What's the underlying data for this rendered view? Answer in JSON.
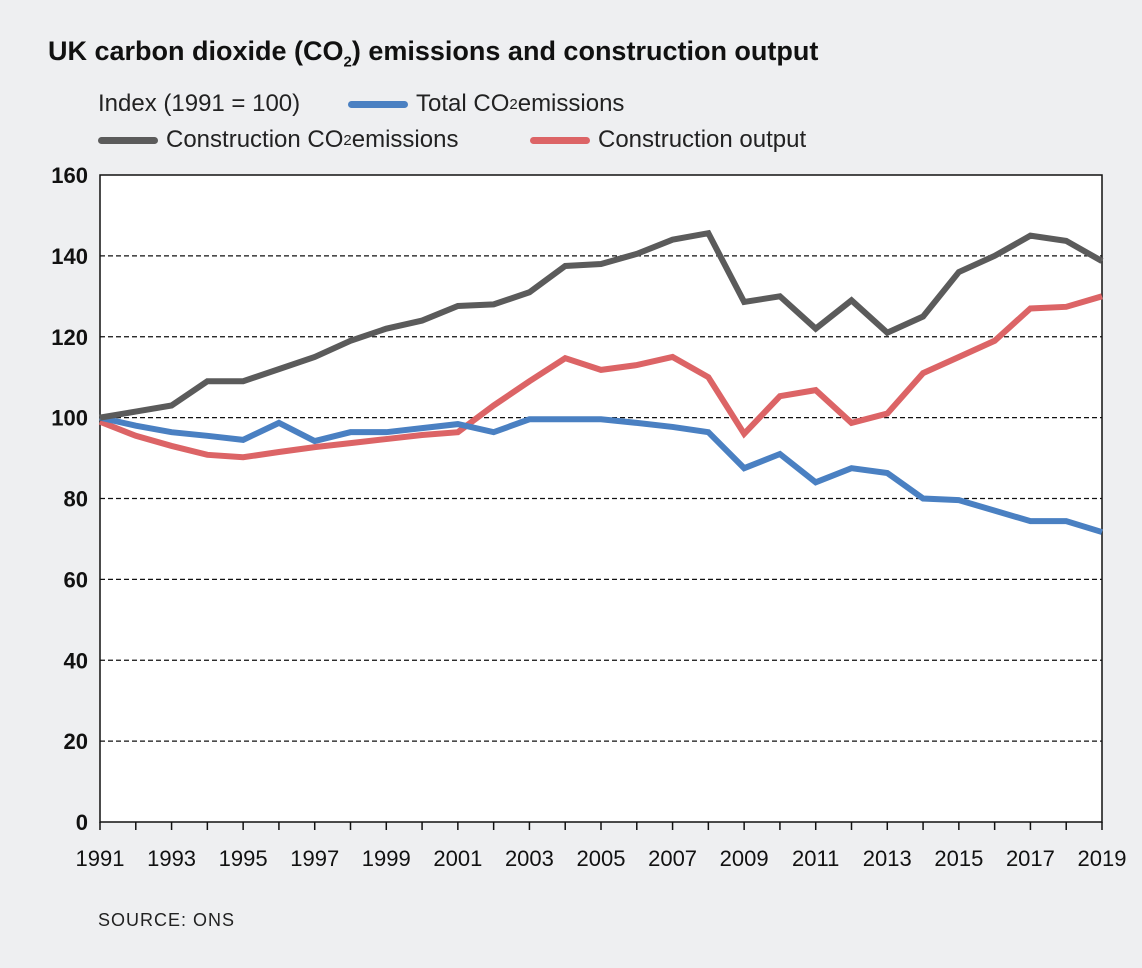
{
  "chart_data": {
    "type": "line",
    "title": "UK carbon dioxide (CO2) emissions and construction output",
    "ylabel": "Index (1991 = 100)",
    "ylim": [
      0,
      160
    ],
    "yticks": [
      0,
      20,
      40,
      60,
      80,
      100,
      120,
      140,
      160
    ],
    "xlim": [
      1991,
      2019
    ],
    "xtick_labels": [
      "1991",
      "1993",
      "1995",
      "1997",
      "1999",
      "2001",
      "2003",
      "2005",
      "2007",
      "2009",
      "2011",
      "2013",
      "2015",
      "2017",
      "2019"
    ],
    "grid": "horizontal dashed",
    "legend_position": "top",
    "x": [
      1991,
      1992,
      1993,
      1994,
      1995,
      1996,
      1997,
      1998,
      1999,
      2000,
      2001,
      2002,
      2003,
      2004,
      2005,
      2006,
      2007,
      2008,
      2009,
      2010,
      2011,
      2012,
      2013,
      2014,
      2015,
      2016,
      2017,
      2018,
      2019
    ],
    "series": [
      {
        "name": "Total CO2 emissions",
        "color": "#4a80c2",
        "values": [
          100,
          98,
          96.4,
          95.5,
          94.5,
          98.7,
          94.2,
          96.4,
          96.4,
          97.4,
          98.4,
          96.4,
          99.6,
          99.6,
          99.6,
          98.7,
          97.7,
          96.4,
          87.5,
          91,
          84,
          87.5,
          86.3,
          80,
          79.6,
          77,
          74.4,
          74.4,
          71.7
        ]
      },
      {
        "name": "Construction CO2 emissions",
        "color": "#5b5b5b",
        "values": [
          100,
          101.5,
          103,
          109,
          109,
          112,
          115,
          119,
          122,
          124,
          127.6,
          128,
          131,
          137.5,
          138,
          140.5,
          144,
          145.6,
          128.6,
          130,
          122,
          129,
          121,
          125,
          136,
          140,
          145,
          143.7,
          138.7
        ]
      },
      {
        "name": "Construction output",
        "color": "#dc6466",
        "values": [
          99,
          95.5,
          93,
          90.8,
          90.2,
          91.5,
          92.7,
          93.7,
          94.7,
          95.7,
          96.4,
          103,
          109,
          114.7,
          111.8,
          113,
          115,
          110,
          96,
          105.3,
          106.8,
          98.7,
          101,
          111,
          115,
          119,
          127,
          127.4,
          130
        ]
      }
    ]
  },
  "title": {
    "main": "UK carbon dioxide (CO",
    "sub": "2",
    "rest": ") emissions and construction output"
  },
  "legend": {
    "index_label": "Index (1991 = 100)",
    "total": {
      "a": "Total CO",
      "sub": "2",
      "b": " emissions"
    },
    "construction": {
      "a": "Construction CO",
      "sub": "2",
      "b": " emissions"
    },
    "output": {
      "a": "Construction output"
    }
  },
  "source": "SOURCE: ONS"
}
